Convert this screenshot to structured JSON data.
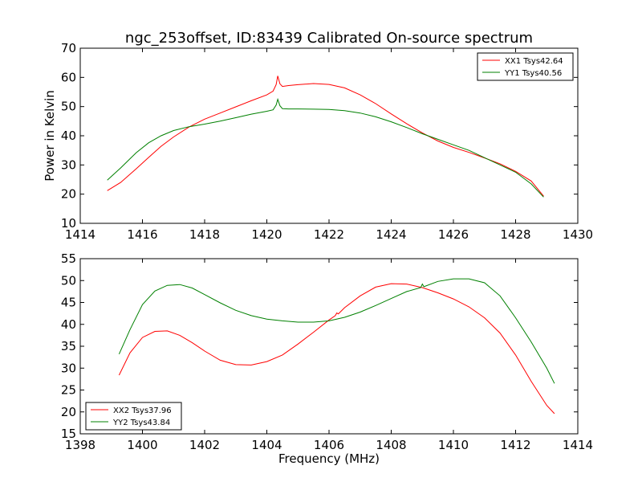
{
  "figure": {
    "title": "ngc_253offset, ID:83439 Calibrated On-source spectrum",
    "xlabel": "Frequency (MHz)",
    "ylabel": "Power in Kelvin"
  },
  "chart_data": [
    {
      "type": "line",
      "title": "ngc_253offset, ID:83439 Calibrated On-source spectrum",
      "xlabel": "",
      "ylabel": "Power in Kelvin",
      "xlim": [
        1414,
        1430
      ],
      "ylim": [
        10,
        70
      ],
      "xticks": [
        1414,
        1416,
        1418,
        1420,
        1422,
        1424,
        1426,
        1428,
        1430
      ],
      "yticks": [
        10,
        20,
        30,
        40,
        50,
        60,
        70
      ],
      "grid": false,
      "legend_position": "top-right",
      "series": [
        {
          "name": "XX1 Tsys42.64",
          "color": "#ff0000",
          "x": [
            1414.87,
            1415.3,
            1415.8,
            1416.2,
            1416.6,
            1417.0,
            1417.5,
            1418.0,
            1418.5,
            1419.0,
            1419.5,
            1420.0,
            1420.2,
            1420.3,
            1420.35,
            1420.42,
            1420.5,
            1420.7,
            1421.0,
            1421.5,
            1422.0,
            1422.5,
            1423.0,
            1423.5,
            1424.0,
            1424.5,
            1425.0,
            1425.5,
            1426.0,
            1426.5,
            1427.0,
            1427.5,
            1428.0,
            1428.5,
            1428.9
          ],
          "y": [
            21.2,
            24.0,
            28.7,
            32.6,
            36.4,
            39.6,
            43.0,
            45.7,
            47.8,
            49.9,
            52.0,
            54.0,
            55.3,
            57.5,
            60.5,
            57.8,
            56.9,
            57.2,
            57.5,
            57.9,
            57.6,
            56.4,
            54.0,
            51.0,
            47.5,
            44.1,
            41.0,
            38.2,
            36.0,
            34.3,
            32.4,
            30.4,
            27.8,
            24.5,
            19.3
          ]
        },
        {
          "name": "YY1 Tsys40.56",
          "color": "#008000",
          "x": [
            1414.87,
            1415.3,
            1415.8,
            1416.2,
            1416.6,
            1417.0,
            1417.5,
            1418.0,
            1418.5,
            1419.0,
            1419.5,
            1420.0,
            1420.2,
            1420.3,
            1420.35,
            1420.42,
            1420.5,
            1420.7,
            1421.0,
            1421.5,
            1422.0,
            1422.5,
            1423.0,
            1423.5,
            1424.0,
            1424.5,
            1425.0,
            1425.5,
            1426.0,
            1426.5,
            1427.0,
            1427.5,
            1428.0,
            1428.5,
            1428.9
          ],
          "y": [
            24.8,
            29.0,
            34.2,
            37.6,
            40.0,
            41.8,
            43.1,
            44.0,
            45.0,
            46.2,
            47.4,
            48.4,
            48.9,
            50.5,
            52.5,
            50.3,
            49.3,
            49.2,
            49.2,
            49.1,
            49.0,
            48.6,
            47.8,
            46.5,
            44.8,
            42.8,
            40.7,
            38.8,
            36.9,
            35.0,
            32.5,
            30.0,
            27.5,
            23.5,
            19.0
          ]
        }
      ]
    },
    {
      "type": "line",
      "title": "",
      "xlabel": "Frequency (MHz)",
      "ylabel": "",
      "xlim": [
        1398,
        1414
      ],
      "ylim": [
        15,
        55
      ],
      "xticks": [
        1398,
        1400,
        1402,
        1404,
        1406,
        1408,
        1410,
        1412,
        1414
      ],
      "yticks": [
        15,
        20,
        25,
        30,
        35,
        40,
        45,
        50,
        55
      ],
      "grid": false,
      "legend_position": "bottom-left",
      "series": [
        {
          "name": "XX2 Tsys37.96",
          "color": "#ff0000",
          "x": [
            1399.25,
            1399.6,
            1400.0,
            1400.4,
            1400.8,
            1401.2,
            1401.6,
            1402.0,
            1402.5,
            1403.0,
            1403.5,
            1404.0,
            1404.5,
            1405.0,
            1405.5,
            1406.0,
            1406.2,
            1406.25,
            1406.3,
            1406.5,
            1407.0,
            1407.5,
            1408.0,
            1408.5,
            1409.0,
            1409.5,
            1410.0,
            1410.5,
            1411.0,
            1411.5,
            1412.0,
            1412.5,
            1413.0,
            1413.25
          ],
          "y": [
            28.4,
            33.5,
            37.0,
            38.4,
            38.5,
            37.5,
            35.8,
            33.9,
            31.8,
            30.8,
            30.7,
            31.5,
            33.0,
            35.5,
            38.2,
            41.0,
            42.0,
            42.6,
            42.4,
            43.8,
            46.5,
            48.5,
            49.3,
            49.2,
            48.4,
            47.2,
            45.8,
            44.0,
            41.5,
            38.0,
            33.0,
            27.0,
            21.5,
            19.6
          ]
        },
        {
          "name": "YY2 Tsys43.84",
          "color": "#008000",
          "x": [
            1399.25,
            1399.6,
            1400.0,
            1400.4,
            1400.8,
            1401.2,
            1401.6,
            1402.0,
            1402.5,
            1403.0,
            1403.5,
            1404.0,
            1404.5,
            1405.0,
            1405.5,
            1406.0,
            1406.5,
            1407.0,
            1407.5,
            1408.0,
            1408.5,
            1408.95,
            1409.0,
            1409.05,
            1409.5,
            1410.0,
            1410.5,
            1411.0,
            1411.5,
            1412.0,
            1412.5,
            1413.0,
            1413.25
          ],
          "y": [
            33.2,
            38.8,
            44.5,
            47.6,
            48.9,
            49.1,
            48.3,
            46.8,
            44.9,
            43.2,
            42.0,
            41.2,
            40.8,
            40.5,
            40.5,
            40.8,
            41.6,
            42.8,
            44.3,
            45.9,
            47.5,
            48.4,
            49.2,
            48.6,
            49.8,
            50.4,
            50.4,
            49.5,
            46.5,
            41.5,
            36.0,
            30.0,
            26.5
          ]
        }
      ]
    }
  ]
}
